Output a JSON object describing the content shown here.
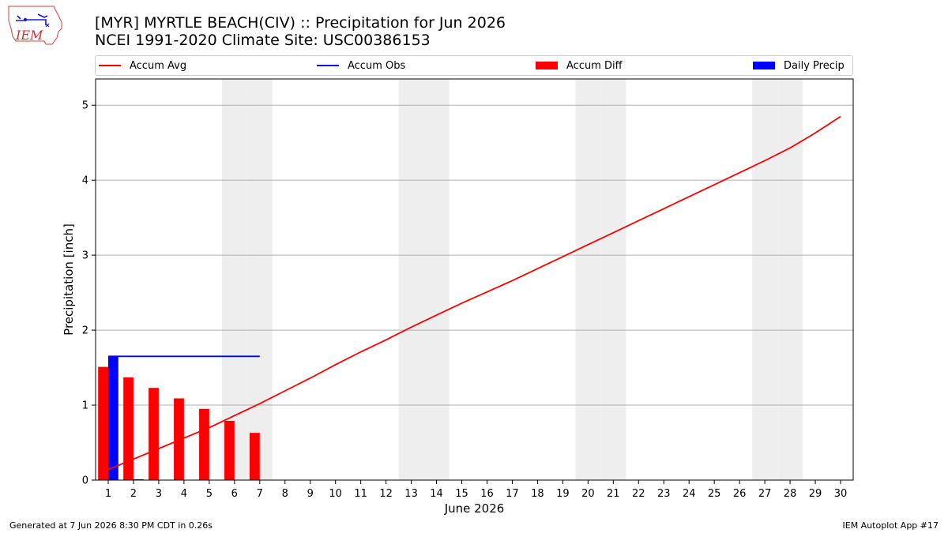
{
  "header": {
    "title_line1": "[MYR] MYRTLE BEACH(CIV) :: Precipitation for Jun 2026",
    "title_line2": "NCEI 1991-2020 Climate Site: USC00386153"
  },
  "logo": {
    "text": "IEM",
    "icon": "iem-iowa-logo"
  },
  "footer": {
    "left": "Generated at 7 Jun 2026 8:30 PM CDT in 0.26s",
    "right": "IEM Autoplot App #17"
  },
  "colors": {
    "accum_avg": "#ff0000",
    "accum_obs": "#0000ff",
    "accum_diff": "#ff0000",
    "daily_precip": "#0000ff",
    "weekend_band": "#eeeeee",
    "grid": "#b0b0b0"
  },
  "chart_data": {
    "type": "bar",
    "xlabel": "June 2026",
    "ylabel": "Precipitation [inch]",
    "xlim": [
      0.5,
      30.5
    ],
    "ylim": [
      0,
      5.35
    ],
    "yticks": [
      0,
      1,
      2,
      3,
      4,
      5
    ],
    "grid": "horizontal",
    "legend_placement": "top",
    "x": [
      1,
      2,
      3,
      4,
      5,
      6,
      7,
      8,
      9,
      10,
      11,
      12,
      13,
      14,
      15,
      16,
      17,
      18,
      19,
      20,
      21,
      22,
      23,
      24,
      25,
      26,
      27,
      28,
      29,
      30
    ],
    "weekend_days": [
      6,
      7,
      13,
      14,
      20,
      21,
      27,
      28
    ],
    "legend": [
      {
        "key": "accum_avg",
        "label": "Accum Avg",
        "kind": "line"
      },
      {
        "key": "accum_obs",
        "label": "Accum Obs",
        "kind": "line"
      },
      {
        "key": "accum_diff",
        "label": "Accum Diff",
        "kind": "patch"
      },
      {
        "key": "daily_precip",
        "label": "Daily Precip",
        "kind": "patch"
      }
    ],
    "series": {
      "accum_avg": [
        0.14,
        0.28,
        0.42,
        0.56,
        0.7,
        0.86,
        1.02,
        1.19,
        1.36,
        1.54,
        1.71,
        1.87,
        2.04,
        2.2,
        2.36,
        2.51,
        2.66,
        2.82,
        2.98,
        3.14,
        3.3,
        3.46,
        3.62,
        3.78,
        3.94,
        4.1,
        4.26,
        4.43,
        4.63,
        4.85
      ],
      "accum_obs": [
        1.65,
        1.65,
        1.65,
        1.65,
        1.65,
        1.65,
        1.65
      ],
      "accum_diff": [
        1.51,
        1.37,
        1.23,
        1.09,
        0.95,
        0.79,
        0.63
      ],
      "daily_precip": [
        1.65,
        0.01,
        0,
        0,
        0,
        0,
        0
      ]
    }
  }
}
